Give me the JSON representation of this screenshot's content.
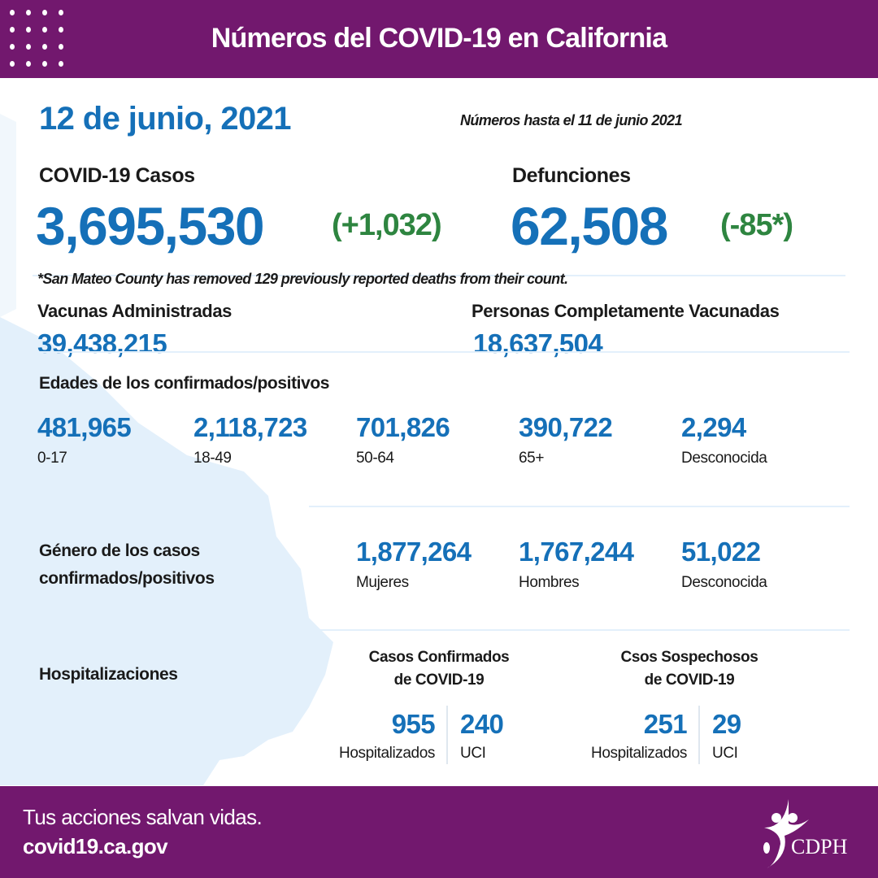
{
  "header": {
    "title": "Números del COVID-19 en California"
  },
  "date": "12 de junio, 2021",
  "as_of": "Números hasta el 11 de junio 2021",
  "cases": {
    "label": "COVID-19 Casos",
    "value": "3,695,530",
    "change": "(+1,032)"
  },
  "deaths": {
    "label": "Defunciones",
    "value": "62,508",
    "change": "(-85*)"
  },
  "footnote": "*San Mateo County has removed 129 previously reported deaths from their count.",
  "vaccines": {
    "label": "Vacunas Administradas",
    "value": "39,438,215"
  },
  "fully_vaccinated": {
    "label": "Personas Completamente Vacunadas",
    "value": "18,637,504"
  },
  "ages": {
    "title": "Edades de los confirmados/positivos",
    "items": [
      {
        "value": "481,965",
        "label": "0-17"
      },
      {
        "value": "2,118,723",
        "label": "18-49"
      },
      {
        "value": "701,826",
        "label": "50-64"
      },
      {
        "value": "390,722",
        "label": "65+"
      },
      {
        "value": "2,294",
        "label": "Desconocida"
      }
    ]
  },
  "gender": {
    "title_line1": "Género de los casos",
    "title_line2": "confirmados/positivos",
    "items": [
      {
        "value": "1,877,264",
        "label": "Mujeres"
      },
      {
        "value": "1,767,244",
        "label": "Hombres"
      },
      {
        "value": "51,022",
        "label": "Desconocida"
      }
    ]
  },
  "hosp": {
    "title": "Hospitalizaciones",
    "confirmed": {
      "line1": "Casos Confirmados",
      "line2": "de COVID-19",
      "hosp_value": "955",
      "hosp_label": "Hospitalizados",
      "icu_value": "240",
      "icu_label": "UCI"
    },
    "suspected": {
      "line1": "Csos Sospechosos",
      "line2": "de COVID-19",
      "hosp_value": "251",
      "hosp_label": "Hospitalizados",
      "icu_value": "29",
      "icu_label": "UCI"
    }
  },
  "footer": {
    "tagline": "Tus acciones salvan vidas.",
    "url": "covid19.ca.gov",
    "logo_text": "CDPH"
  },
  "colors": {
    "purple": "#72186e",
    "blue": "#1570b8",
    "green": "#2e8540",
    "map": "#e3f0fb"
  }
}
